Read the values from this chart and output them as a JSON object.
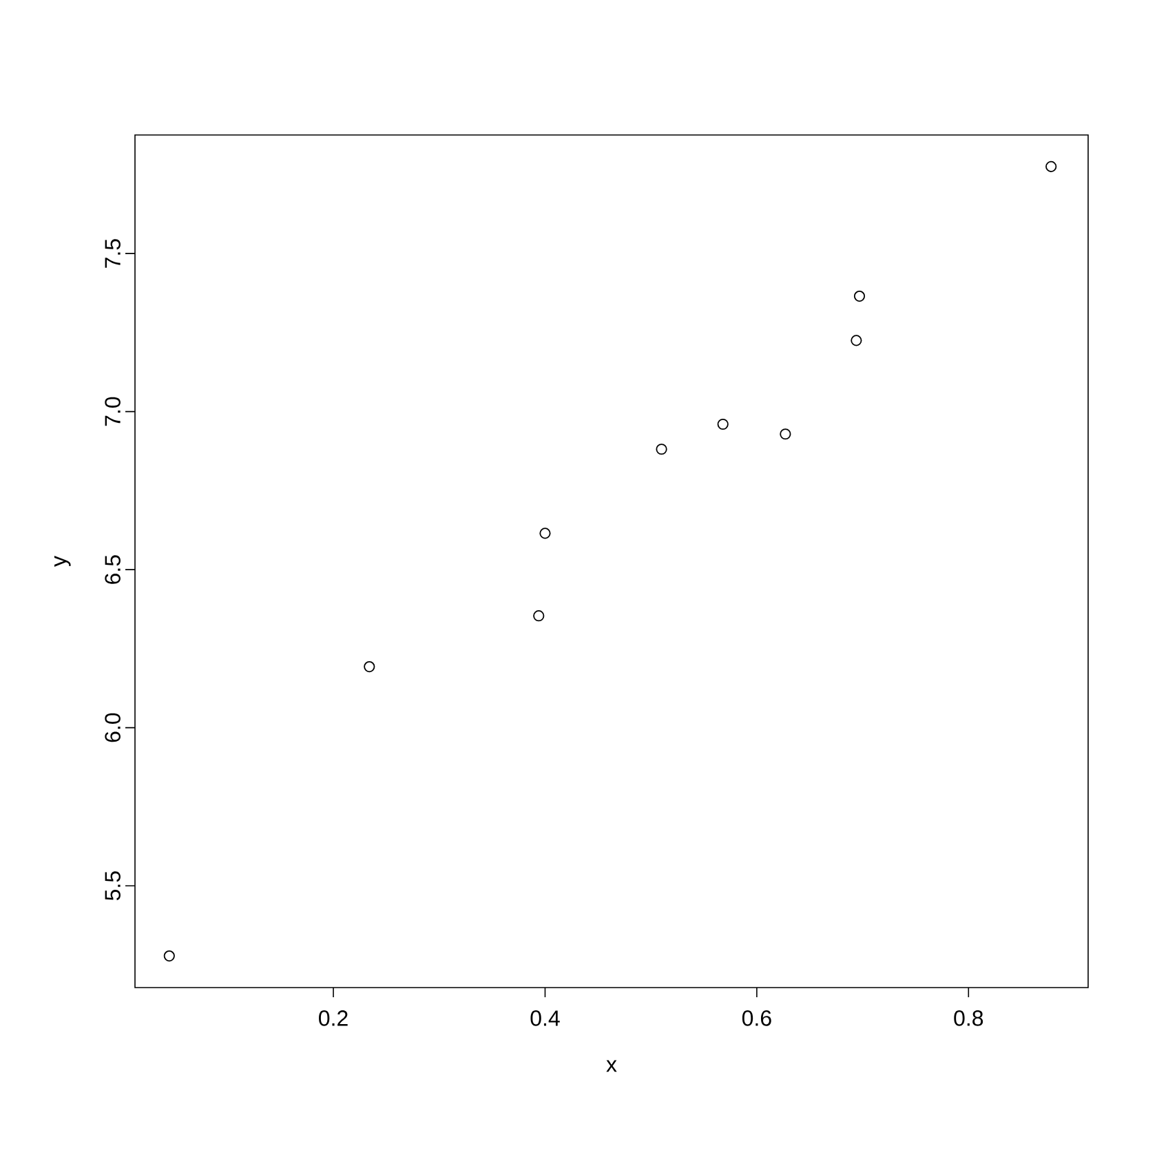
{
  "chart_data": {
    "type": "scatter",
    "xlabel": "x",
    "ylabel": "y",
    "marker": "circle",
    "grid": false,
    "xlim": [
      0.0126,
      0.913
    ],
    "ylim": [
      5.178,
      7.875
    ],
    "xticks": [
      0.2,
      0.4,
      0.6,
      0.8
    ],
    "yticks": [
      5.5,
      {
        "value": 6,
        "label": "6.0"
      },
      6.5,
      {
        "value": 7,
        "label": "7.0"
      },
      7.5
    ],
    "series": [
      {
        "color": "#000000",
        "x": [
          0.045,
          0.234,
          0.394,
          0.4,
          0.51,
          0.568,
          0.627,
          0.694,
          0.697,
          0.878
        ],
        "values": [
          5.278,
          6.193,
          6.354,
          6.615,
          6.881,
          6.96,
          6.929,
          7.225,
          7.365,
          7.775
        ]
      }
    ]
  }
}
